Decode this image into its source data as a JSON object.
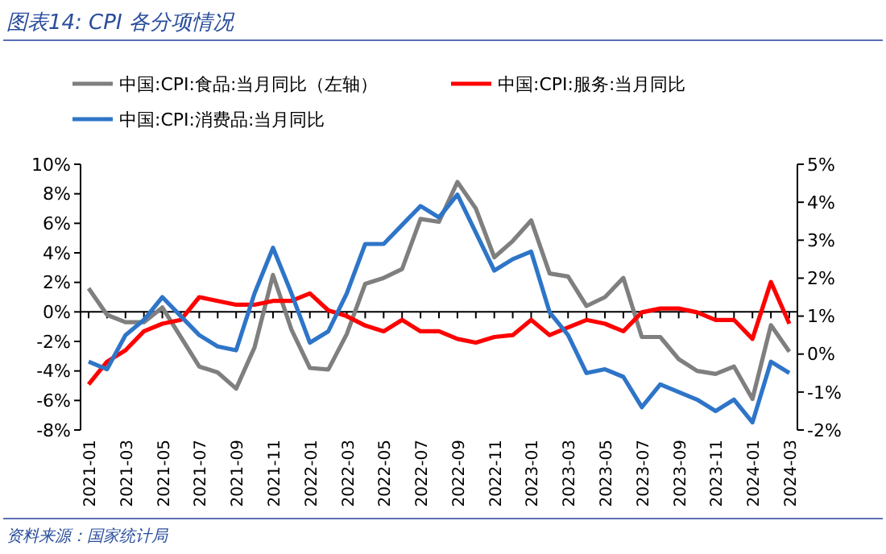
{
  "chart_data": {
    "type": "line",
    "title": "图表14:  CPI 各分项情况",
    "annotations": [
      "资料来源：国家统计局"
    ],
    "categories": [
      "2021-01",
      null,
      "2021-03",
      null,
      "2021-05",
      null,
      "2021-07",
      null,
      "2021-09",
      null,
      "2021-11",
      null,
      "2022-01",
      null,
      "2022-03",
      null,
      "2022-05",
      null,
      "2022-07",
      null,
      "2022-09",
      null,
      "2022-11",
      null,
      "2023-01",
      null,
      "2023-03",
      null,
      "2023-05",
      null,
      "2023-07",
      null,
      "2023-09",
      null,
      "2023-11",
      null,
      "2024-01",
      null,
      "2024-03"
    ],
    "series": [
      {
        "name": "中国:CPI:食品:当月同比（左轴）",
        "color": "#7f7f7f",
        "values": [
          1.6,
          -0.2,
          -0.7,
          -0.7,
          0.3,
          -1.7,
          -3.7,
          -4.1,
          -5.2,
          -2.4,
          2.5,
          -1.2,
          -3.8,
          -3.9,
          -1.5,
          1.9,
          2.3,
          2.9,
          6.3,
          6.1,
          8.8,
          7.0,
          3.7,
          4.8,
          6.2,
          2.6,
          2.4,
          0.4,
          1.0,
          2.3,
          -1.7,
          -1.7,
          -3.2,
          -4.0,
          -4.2,
          -3.7,
          -5.9,
          -0.9,
          -2.7
        ]
      },
      {
        "name": "中国:CPI:服务:当月同比",
        "color": "#ff0000",
        "axis": "y2",
        "values": [
          -0.8,
          -0.2,
          0.1,
          0.6,
          0.8,
          0.9,
          1.5,
          1.4,
          1.3,
          1.3,
          1.4,
          1.4,
          1.6,
          1.15,
          1.0,
          0.75,
          0.6,
          0.9,
          0.6,
          0.6,
          0.4,
          0.3,
          0.45,
          0.5,
          0.9,
          0.5,
          0.7,
          0.9,
          0.8,
          0.6,
          1.1,
          1.2,
          1.2,
          1.1,
          0.9,
          0.9,
          0.4,
          1.9,
          0.8
        ]
      },
      {
        "name": "中国:CPI:消费品:当月同比",
        "color": "#2e75c8",
        "axis": "y2",
        "values": [
          -0.2,
          -0.4,
          0.5,
          0.9,
          1.5,
          1.0,
          0.5,
          0.2,
          0.1,
          1.6,
          2.8,
          1.6,
          0.3,
          0.6,
          1.6,
          2.9,
          2.9,
          3.4,
          3.9,
          3.6,
          4.2,
          3.2,
          2.2,
          2.5,
          2.7,
          1.1,
          0.5,
          -0.5,
          -0.4,
          -0.6,
          -1.4,
          -0.8,
          -1.0,
          -1.2,
          -1.5,
          -1.2,
          -1.8,
          -0.2,
          -0.5
        ]
      }
    ],
    "ylim": [
      -8,
      10
    ],
    "yticks": [
      {
        "value": -8,
        "label": "-8%"
      },
      {
        "value": -6,
        "label": "-6%"
      },
      {
        "value": -4,
        "label": "-4%"
      },
      {
        "value": -2,
        "label": "-2%"
      },
      {
        "value": 0,
        "label": "0%"
      },
      {
        "value": 2,
        "label": "2%"
      },
      {
        "value": 4,
        "label": "4%"
      },
      {
        "value": 6,
        "label": "6%"
      },
      {
        "value": 8,
        "label": "8%"
      },
      {
        "value": 10,
        "label": "10%"
      }
    ],
    "y2lim": [
      -2,
      5
    ],
    "y2ticks": [
      {
        "value": -2,
        "label": "-2%"
      },
      {
        "value": -1,
        "label": "-1%"
      },
      {
        "value": 0,
        "label": "0%"
      },
      {
        "value": 1,
        "label": "1%"
      },
      {
        "value": 2,
        "label": "2%"
      },
      {
        "value": 3,
        "label": "3%"
      },
      {
        "value": 4,
        "label": "4%"
      },
      {
        "value": 5,
        "label": "5%"
      }
    ],
    "legend": "top",
    "marker": "none",
    "line_style": "solid"
  }
}
